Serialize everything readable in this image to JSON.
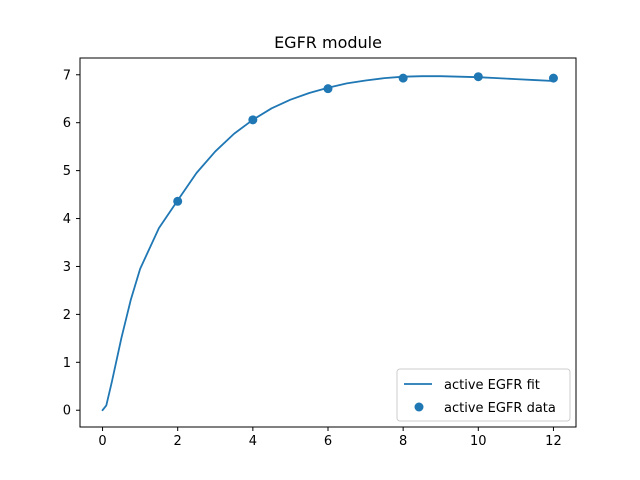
{
  "chart_data": {
    "type": "line",
    "title": "EGFR module",
    "xlabel": "",
    "ylabel": "",
    "xlim": [
      -0.6,
      12.6
    ],
    "ylim": [
      -0.35,
      7.35
    ],
    "x_ticks": [
      0,
      2,
      4,
      6,
      8,
      10,
      12
    ],
    "y_ticks": [
      0,
      1,
      2,
      3,
      4,
      5,
      6,
      7
    ],
    "grid": false,
    "legend_position": "lower-right",
    "series": [
      {
        "name": "active EGFR fit",
        "kind": "line",
        "color": "#1f77b4",
        "x": [
          0,
          0.1,
          0.25,
          0.5,
          0.75,
          1,
          1.5,
          2,
          2.5,
          3,
          3.5,
          4,
          4.5,
          5,
          5.5,
          6,
          6.5,
          7,
          7.5,
          8,
          8.5,
          9,
          9.5,
          10,
          10.5,
          11,
          11.5,
          12
        ],
        "y": [
          0,
          0.1,
          0.6,
          1.5,
          2.3,
          2.95,
          3.8,
          4.38,
          4.95,
          5.4,
          5.77,
          6.06,
          6.3,
          6.48,
          6.62,
          6.73,
          6.82,
          6.88,
          6.93,
          6.96,
          6.97,
          6.97,
          6.96,
          6.95,
          6.93,
          6.91,
          6.89,
          6.87
        ]
      },
      {
        "name": "active EGFR data",
        "kind": "scatter",
        "color": "#1f77b4",
        "x": [
          2,
          4,
          6,
          8,
          10,
          12
        ],
        "y": [
          4.36,
          6.06,
          6.71,
          6.93,
          6.96,
          6.93
        ]
      }
    ]
  }
}
